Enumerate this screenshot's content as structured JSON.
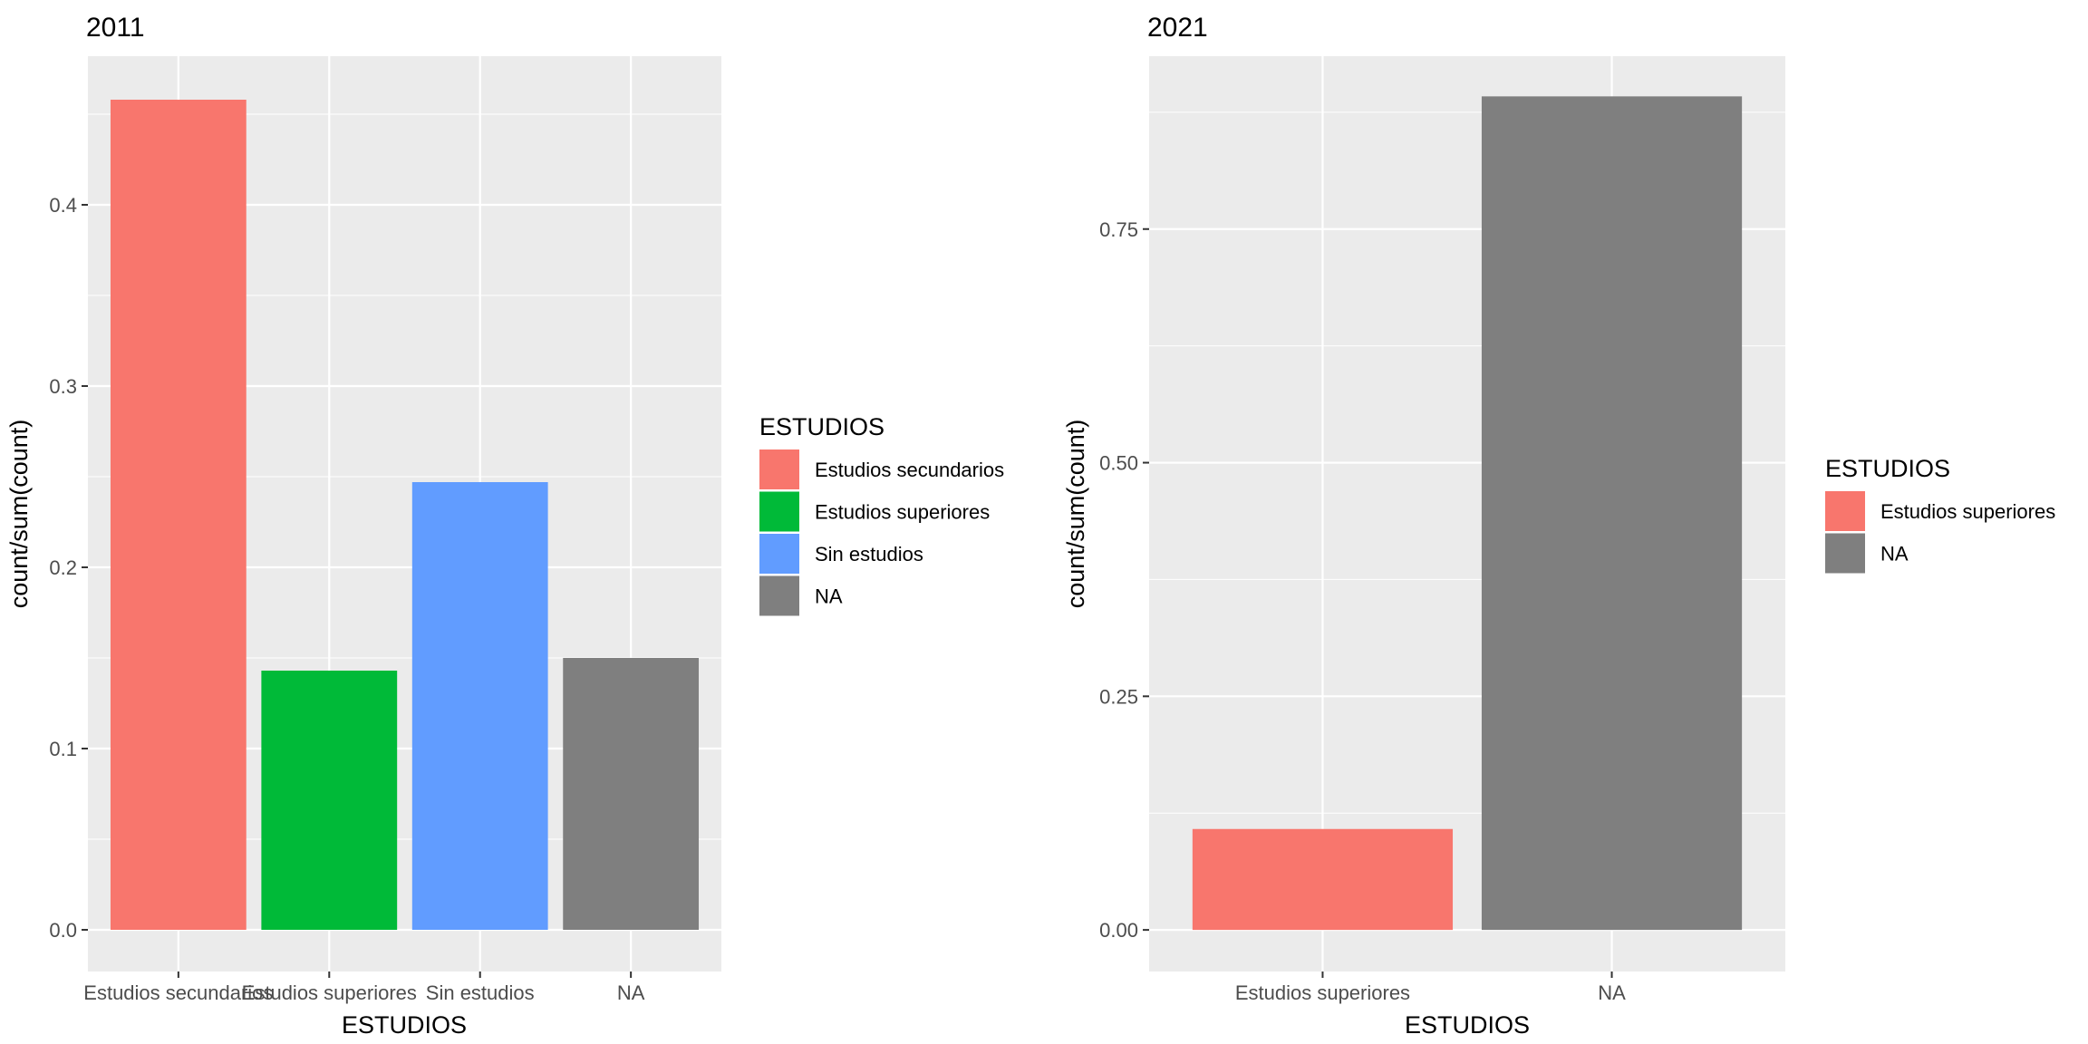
{
  "chart_data": [
    {
      "type": "bar",
      "title": "2011",
      "xlabel": "ESTUDIOS",
      "ylabel": "count/sum(count)",
      "ylim": [
        -0.023,
        0.482
      ],
      "yticks": [
        "0.0",
        "0.1",
        "0.2",
        "0.3",
        "0.4"
      ],
      "categories": [
        "Estudios secundarios",
        "Estudios superiores",
        "Sin estudios",
        "NA"
      ],
      "values": [
        0.458,
        0.143,
        0.247,
        0.15
      ],
      "colors": [
        "#F8766D",
        "#00BA38",
        "#619CFF",
        "#7F7F7F"
      ],
      "grid": true,
      "legend": {
        "title": "ESTUDIOS",
        "position": "right",
        "entries": [
          {
            "label": "Estudios secundarios",
            "color": "#F8766D"
          },
          {
            "label": "Estudios superiores",
            "color": "#00BA38"
          },
          {
            "label": "Sin estudios",
            "color": "#619CFF"
          },
          {
            "label": "NA",
            "color": "#7F7F7F"
          }
        ]
      }
    },
    {
      "type": "bar",
      "title": "2021",
      "xlabel": "ESTUDIOS",
      "ylabel": "count/sum(count)",
      "ylim": [
        -0.0445,
        0.935
      ],
      "yticks": [
        "0.00",
        "0.25",
        "0.50",
        "0.75"
      ],
      "categories": [
        "Estudios superiores",
        "NA"
      ],
      "values": [
        0.108,
        0.892
      ],
      "colors": [
        "#F8766D",
        "#7F7F7F"
      ],
      "grid": true,
      "legend": {
        "title": "ESTUDIOS",
        "position": "right",
        "entries": [
          {
            "label": "Estudios superiores",
            "color": "#F8766D"
          },
          {
            "label": "NA",
            "color": "#7F7F7F"
          }
        ]
      }
    }
  ]
}
